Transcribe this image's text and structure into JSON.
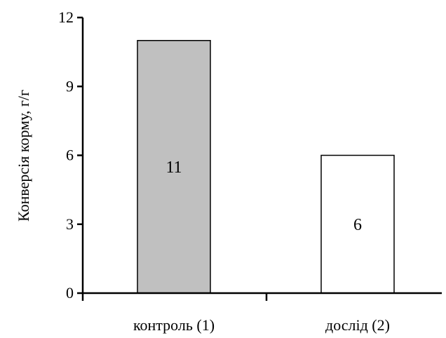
{
  "chart_data": {
    "type": "bar",
    "categories": [
      "контроль (1)",
      "дослід (2)"
    ],
    "values": [
      11,
      6
    ],
    "data_labels": [
      "11",
      "6"
    ],
    "bar_fills": [
      "#c0c0c0",
      "#ffffff"
    ],
    "ylabel": "Конверсія корму, г/г",
    "ylim": [
      0,
      12
    ],
    "yticks": [
      0,
      3,
      6,
      9,
      12
    ],
    "ytick_labels": [
      "0",
      "3",
      "6",
      "9",
      "12"
    ],
    "grid": false
  }
}
